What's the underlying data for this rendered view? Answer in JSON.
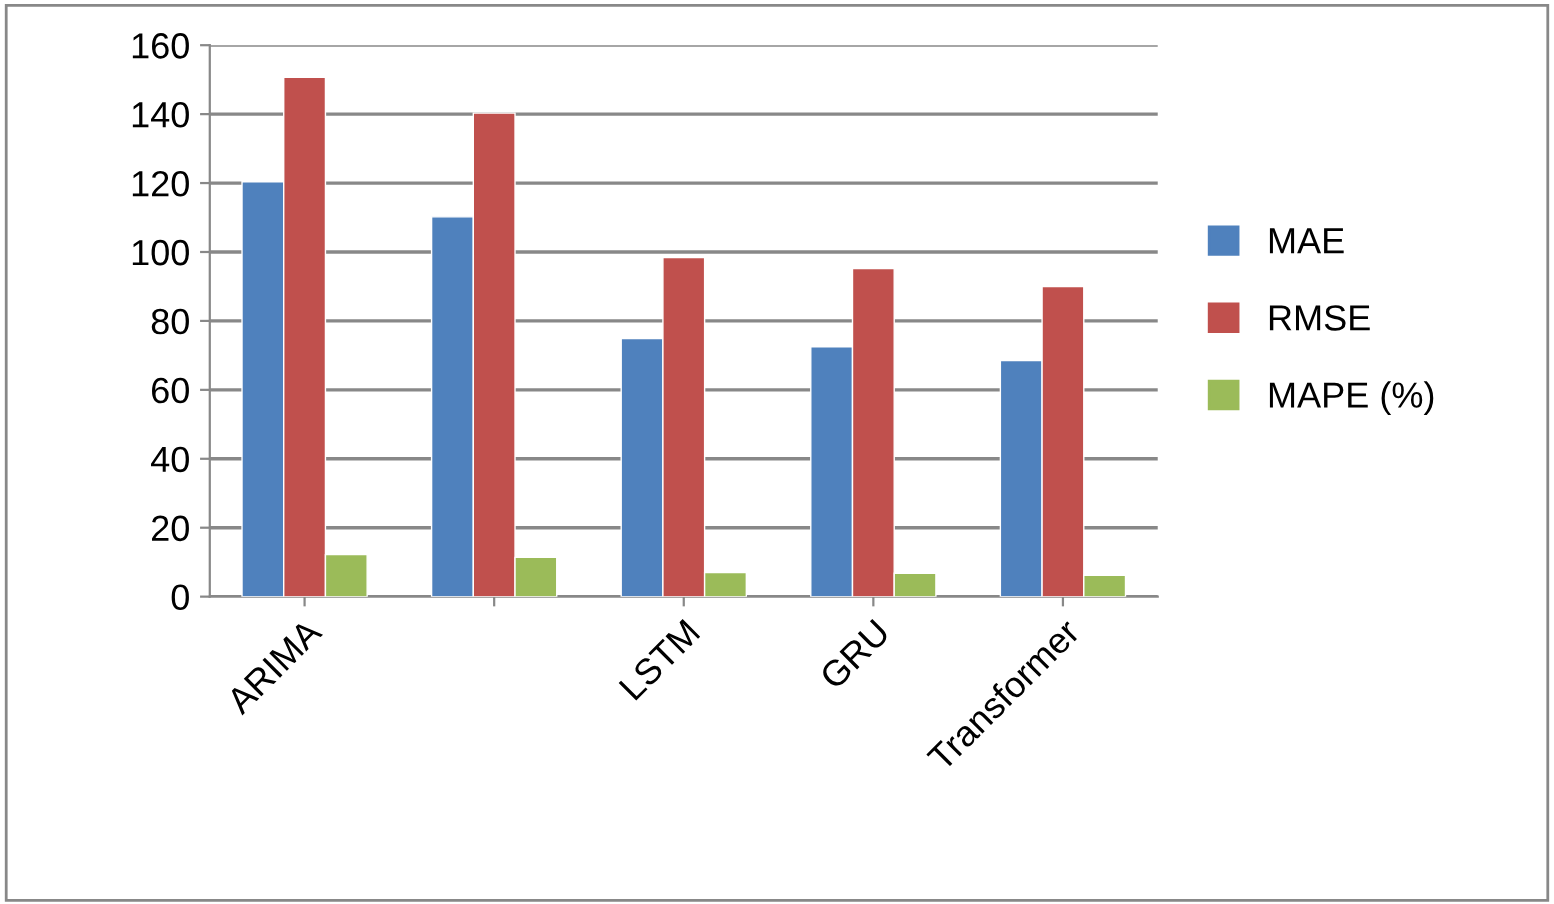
{
  "chart_data": {
    "type": "bar",
    "categories": [
      "ARIMA",
      null,
      "LSTM",
      "GRU",
      "Transformer"
    ],
    "series": [
      {
        "name": "MAE",
        "color": "#4f81bd",
        "values": [
          120.4,
          110.2,
          74.9,
          72.5,
          68.5
        ]
      },
      {
        "name": "RMSE",
        "color": "#c0504d",
        "values": [
          150.7,
          140.3,
          98.4,
          95.2,
          90.0
        ]
      },
      {
        "name": "MAPE (%)",
        "color": "#9bbb59",
        "values": [
          12.2,
          11.4,
          7.0,
          6.8,
          6.2
        ]
      }
    ],
    "ylim": [
      0,
      160
    ],
    "yticks": [
      0,
      20,
      40,
      60,
      80,
      100,
      120,
      140,
      160
    ],
    "grid": "y",
    "legend": "right"
  }
}
